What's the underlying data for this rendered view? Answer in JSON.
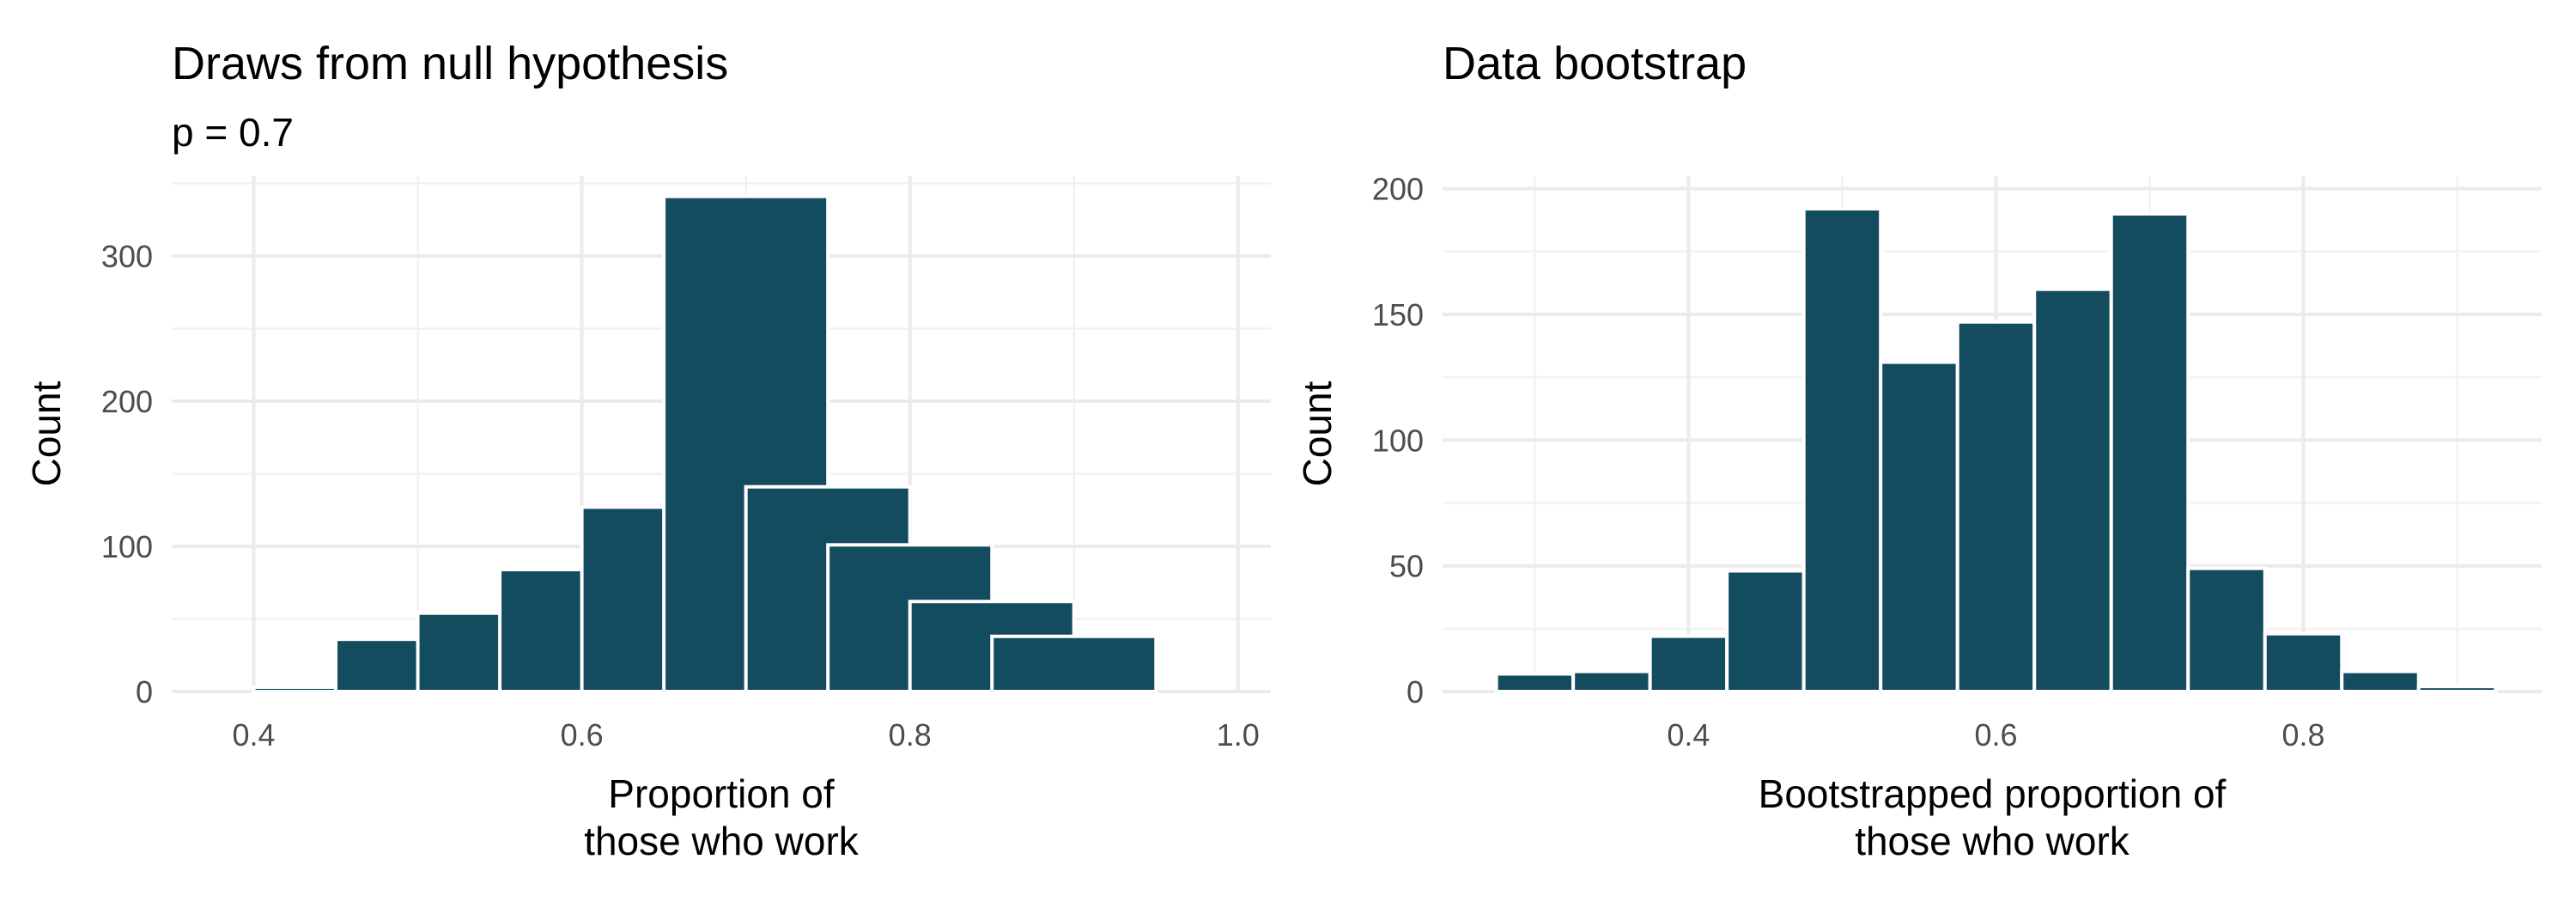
{
  "chart_data": [
    {
      "type": "bar",
      "title": "Draws from null hypothesis",
      "subtitle": "p = 0.7",
      "xlabel": [
        "Proportion of",
        "those who work"
      ],
      "ylabel": "Count",
      "bar_color": "#134b5f",
      "xlim": [
        0.35,
        1.02
      ],
      "ylim": [
        0,
        355
      ],
      "x_ticks": [
        0.4,
        0.6,
        0.8,
        1.0
      ],
      "x_tick_labels": [
        "0.4",
        "0.6",
        "0.8",
        "1.0"
      ],
      "y_ticks": [
        0,
        100,
        200,
        300
      ],
      "y_tick_labels": [
        "0",
        "100",
        "200",
        "300"
      ],
      "bin_width": 0.1,
      "bins": [
        {
          "center": 0.4,
          "count": 0
        },
        {
          "center": 0.45,
          "count": 3
        },
        {
          "center": 0.5,
          "count": 36
        },
        {
          "center": 0.55,
          "count": 54
        },
        {
          "center": 0.6,
          "count": 84
        },
        {
          "center": 0.65,
          "count": 127
        },
        {
          "center": 0.7,
          "count": 341
        },
        {
          "center": 0.75,
          "count": 141
        },
        {
          "center": 0.8,
          "count": 101
        },
        {
          "center": 0.85,
          "count": 62
        },
        {
          "center": 0.9,
          "count": 38
        },
        {
          "center": 0.95,
          "count": 0
        }
      ],
      "grid": true,
      "legend": "none"
    },
    {
      "type": "bar",
      "title": "Data bootstrap",
      "xlabel": [
        "Bootstrapped proportion of",
        "those who work"
      ],
      "ylabel": "Count",
      "bar_color": "#134b5f",
      "xlim": [
        0.24,
        0.955
      ],
      "ylim": [
        0,
        205
      ],
      "x_ticks": [
        0.4,
        0.6,
        0.8
      ],
      "x_tick_labels": [
        "0.4",
        "0.6",
        "0.8"
      ],
      "y_ticks": [
        0,
        50,
        100,
        150,
        200
      ],
      "y_tick_labels": [
        "0",
        "50",
        "100",
        "150",
        "200"
      ],
      "bin_width": 0.05,
      "bins": [
        {
          "center": 0.3,
          "count": 7
        },
        {
          "center": 0.35,
          "count": 8
        },
        {
          "center": 0.4,
          "count": 22
        },
        {
          "center": 0.45,
          "count": 48
        },
        {
          "center": 0.5,
          "count": 192
        },
        {
          "center": 0.55,
          "count": 131
        },
        {
          "center": 0.6,
          "count": 147
        },
        {
          "center": 0.65,
          "count": 160
        },
        {
          "center": 0.7,
          "count": 190
        },
        {
          "center": 0.75,
          "count": 49
        },
        {
          "center": 0.8,
          "count": 23
        },
        {
          "center": 0.85,
          "count": 8
        },
        {
          "center": 0.9,
          "count": 2
        }
      ],
      "grid": true,
      "legend": "none"
    }
  ]
}
